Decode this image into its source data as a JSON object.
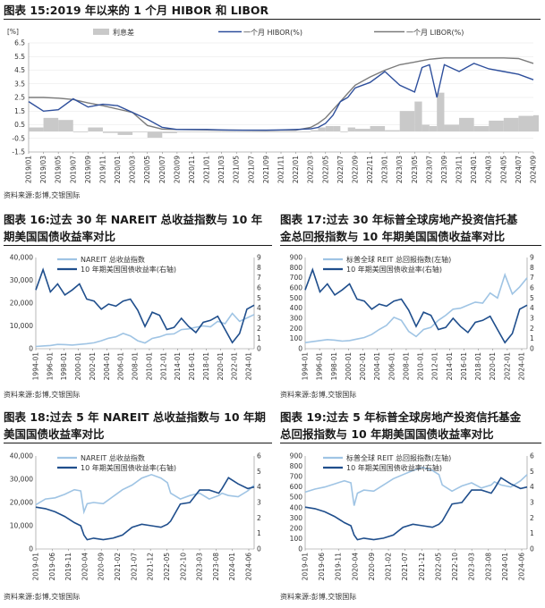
{
  "figures": {
    "f15": {
      "title": "图表 15:2019 年以来的 1 个月 HIBOR 和 LIBOR",
      "source": "资料来源:彭博,交银国际"
    },
    "f16": {
      "title_line1": "图表 16:过去 30 年 NAREIT 总收益指数与 10 年",
      "title_line2": "期美国国债收益率对比",
      "source": "资料来源:彭博,交银国际"
    },
    "f17": {
      "title_line1": "图表 17:过去 30 年标普全球房地产投资信托基",
      "title_line2": "金总回报指数与 10 年期美国国债收益率对比",
      "source": "资料来源:彭博,交银国际"
    },
    "f18": {
      "title_line1": "图表 18:过去 5 年 NAREIT 总收益指数与 10 年期",
      "title_line2": "美国国债收益率对比",
      "source": "资料来源:彭博,交银国际"
    },
    "f19": {
      "title_line1": "图表 19:过去 5 年标普全球房地产投资信托基金",
      "title_line2": "总回报指数与 10 年期美国国债收益率对比",
      "source": "资料来源:彭博,交银国际"
    }
  },
  "colors": {
    "gray_area": "#c9c9c9",
    "hibor": "#2e4f9c",
    "libor": "#7b7b7b",
    "light_blue": "#9fc4e4",
    "dark_blue": "#1f4e8c"
  },
  "chart_data": [
    {
      "id": "c15",
      "type": "line",
      "unit_label": "[%]",
      "legend": [
        "利息差",
        "一个月 HIBOR(%)",
        "一个月 LIBOR(%)"
      ],
      "ylim": [
        -1.5,
        6.5
      ],
      "y_ticks": [
        -1.5,
        -0.5,
        0.5,
        1.5,
        2.5,
        3.5,
        4.5,
        5.5,
        6.5
      ],
      "x_ticks": [
        "2019/01",
        "2019/03",
        "2019/05",
        "2019/07",
        "2019/09",
        "2019/11",
        "2020/01",
        "2020/03",
        "2020/05",
        "2020/07",
        "2020/09",
        "2020/11",
        "2021/01",
        "2021/03",
        "2021/05",
        "2021/07",
        "2021/09",
        "2021/11",
        "2022/01",
        "2022/03",
        "2022/05",
        "2022/07",
        "2022/09",
        "2022/11",
        "2023/01",
        "2023/03",
        "2023/05",
        "2023/07",
        "2023/09",
        "2023/11",
        "2024/01",
        "2024/03",
        "2024/05",
        "2024/07",
        "2024/09"
      ],
      "x": [
        0,
        2,
        4,
        6,
        8,
        10,
        12,
        14,
        16,
        18,
        20,
        22,
        24,
        26,
        28,
        30,
        32,
        34,
        36,
        38,
        39,
        40,
        41,
        42,
        43,
        44,
        46,
        48,
        50,
        52,
        53,
        54,
        55,
        56,
        58,
        60,
        62,
        64,
        66,
        68
      ],
      "series": [
        {
          "name": "一个月 HIBOR(%)",
          "values": [
            2.2,
            1.5,
            1.6,
            2.4,
            1.8,
            2.0,
            1.9,
            1.4,
            0.9,
            0.3,
            0.15,
            0.15,
            0.15,
            0.12,
            0.1,
            0.1,
            0.1,
            0.12,
            0.15,
            0.2,
            0.3,
            0.6,
            1.2,
            2.2,
            2.5,
            3.2,
            3.6,
            4.4,
            3.4,
            2.9,
            4.7,
            4.9,
            2.5,
            4.9,
            4.4,
            5.0,
            4.6,
            4.4,
            4.2,
            3.8
          ]
        },
        {
          "name": "一个月 LIBOR(%)",
          "values": [
            2.5,
            2.5,
            2.45,
            2.35,
            2.1,
            1.9,
            1.65,
            1.4,
            0.45,
            0.18,
            0.15,
            0.14,
            0.12,
            0.1,
            0.1,
            0.09,
            0.08,
            0.1,
            0.1,
            0.3,
            0.6,
            1.0,
            1.6,
            2.2,
            2.8,
            3.4,
            4.0,
            4.5,
            4.9,
            5.1,
            5.2,
            5.3,
            5.35,
            5.4,
            5.4,
            5.4,
            5.4,
            5.4,
            5.35,
            5.0
          ]
        },
        {
          "name": "利息差",
          "values": [
            0.3,
            1.0,
            0.85,
            -0.05,
            0.3,
            -0.1,
            -0.25,
            0.0,
            -0.45,
            -0.12,
            0.0,
            -0.01,
            -0.03,
            -0.02,
            0.0,
            -0.01,
            -0.02,
            -0.02,
            -0.05,
            0.1,
            0.3,
            0.4,
            0.4,
            0.0,
            0.3,
            0.2,
            0.4,
            0.1,
            1.5,
            2.2,
            0.5,
            0.4,
            2.85,
            0.5,
            1.0,
            0.4,
            0.8,
            1.0,
            1.15,
            1.2
          ]
        }
      ]
    },
    {
      "id": "c16",
      "type": "line",
      "legend": [
        "NAREIT 总收益指数",
        "10 年期美国国债收益率(右轴)"
      ],
      "y_left": [
        0,
        40000
      ],
      "y_left_ticks": [
        "0",
        "10,000",
        "20,000",
        "30,000",
        "40,000"
      ],
      "y_right": [
        0,
        9
      ],
      "y_right_ticks": [
        "0",
        "1",
        "2",
        "3",
        "4",
        "5",
        "6",
        "7",
        "8",
        "9"
      ],
      "x_ticks": [
        "1994-01",
        "1996-01",
        "1998-01",
        "2000-01",
        "2002-01",
        "2004-01",
        "2006-01",
        "2008-01",
        "2010-01",
        "2012-01",
        "2014-01",
        "2016-01",
        "2018-01",
        "2020-01",
        "2022-01",
        "2024-01"
      ],
      "x": [
        1994,
        1995,
        1996,
        1997,
        1998,
        1999,
        2000,
        2001,
        2002,
        2003,
        2004,
        2005,
        2006,
        2007,
        2008,
        2009,
        2010,
        2011,
        2012,
        2013,
        2014,
        2015,
        2016,
        2017,
        2018,
        2019,
        2020,
        2021,
        2022,
        2023,
        2024
      ],
      "series": [
        {
          "name": "NAREIT 总收益指数",
          "axis": "left",
          "values": [
            1000,
            1200,
            1400,
            1900,
            1800,
            1600,
            1900,
            2200,
            2600,
            3500,
            4600,
            5200,
            6700,
            5600,
            3500,
            2500,
            4500,
            5200,
            6300,
            6500,
            8400,
            8700,
            9400,
            10000,
            9600,
            12000,
            11000,
            15500,
            12000,
            13500,
            15000
          ]
        },
        {
          "name": "10 年期美国国债收益率(右轴)",
          "axis": "right",
          "values": [
            5.8,
            7.8,
            5.6,
            6.4,
            5.3,
            5.8,
            6.4,
            4.9,
            4.7,
            3.9,
            4.4,
            4.2,
            4.7,
            4.9,
            3.8,
            2.2,
            3.6,
            3.3,
            1.9,
            2.1,
            3.0,
            2.2,
            1.6,
            2.6,
            2.8,
            3.2,
            1.9,
            0.6,
            1.5,
            3.9,
            4.3
          ]
        }
      ]
    },
    {
      "id": "c17",
      "type": "line",
      "legend": [
        "标普全球 REIT 总回报指数(左轴)",
        "10 年期美国国债收益率(右轴)"
      ],
      "y_left": [
        0,
        900
      ],
      "y_left_ticks": [
        "0",
        "100",
        "200",
        "300",
        "400",
        "500",
        "600",
        "700",
        "800",
        "900"
      ],
      "y_right": [
        0,
        9
      ],
      "y_right_ticks": [
        "0",
        "1",
        "2",
        "3",
        "4",
        "5",
        "6",
        "7",
        "8",
        "9"
      ],
      "x_ticks": [
        "1994-01",
        "1996-01",
        "1998-01",
        "2000-01",
        "2002-01",
        "2004-01",
        "2006-01",
        "2008-01",
        "2010-01",
        "2012-01",
        "2014-01",
        "2016-01",
        "2018-01",
        "2020-01",
        "2022-01",
        "2024-01"
      ],
      "x": [
        1994,
        1995,
        1996,
        1997,
        1998,
        1999,
        2000,
        2001,
        2002,
        2003,
        2004,
        2005,
        2006,
        2007,
        2008,
        2009,
        2010,
        2011,
        2012,
        2013,
        2014,
        2015,
        2016,
        2017,
        2018,
        2019,
        2020,
        2021,
        2022,
        2023,
        2024
      ],
      "series": [
        {
          "name": "标普全球 REIT 总回报指数(左轴)",
          "axis": "left",
          "values": [
            60,
            70,
            80,
            90,
            85,
            75,
            80,
            95,
            110,
            140,
            190,
            230,
            310,
            280,
            170,
            120,
            190,
            210,
            280,
            330,
            390,
            400,
            430,
            460,
            450,
            550,
            500,
            730,
            540,
            610,
            700
          ]
        },
        {
          "name": "10 年期美国国债收益率(右轴)",
          "axis": "right",
          "values": [
            5.8,
            7.8,
            5.6,
            6.4,
            5.3,
            5.8,
            6.4,
            4.9,
            4.7,
            3.9,
            4.4,
            4.2,
            4.7,
            4.9,
            3.8,
            2.2,
            3.6,
            3.3,
            1.9,
            2.1,
            3.0,
            2.2,
            1.6,
            2.6,
            2.8,
            3.2,
            1.9,
            0.6,
            1.5,
            3.9,
            4.3
          ]
        }
      ]
    },
    {
      "id": "c18",
      "type": "line",
      "legend": [
        "NAREIT 总收益指数",
        "10 年期美国国债收益率(右轴)"
      ],
      "y_left": [
        0,
        40000
      ],
      "y_left_ticks": [
        "0",
        "10,000",
        "20,000",
        "30,000",
        "40,000"
      ],
      "y_right": [
        0,
        6
      ],
      "y_right_ticks": [
        "0",
        "1",
        "2",
        "3",
        "4",
        "5",
        "6"
      ],
      "x_ticks": [
        "2019-01",
        "2019-06",
        "2019-11",
        "2020-04",
        "2020-09",
        "2021-02",
        "2021-07",
        "2021-12",
        "2022-05",
        "2022-10",
        "2023-03",
        "2023-08",
        "2024-01",
        "2024-06"
      ],
      "x": [
        0,
        3,
        6,
        9,
        12,
        14,
        15,
        16,
        18,
        21,
        24,
        27,
        30,
        33,
        36,
        39,
        41,
        42,
        45,
        48,
        51,
        54,
        57,
        58,
        60,
        63,
        66,
        68
      ],
      "series": [
        {
          "name": "NAREIT 总收益指数",
          "axis": "left",
          "values": [
            19000,
            21500,
            22000,
            23500,
            25500,
            25000,
            16000,
            19500,
            20000,
            19500,
            22500,
            25500,
            27500,
            30500,
            32000,
            30500,
            28500,
            24000,
            21500,
            23000,
            24000,
            21500,
            23000,
            24000,
            23000,
            22500,
            25000,
            27500
          ]
        },
        {
          "name": "10 年期美国国债收益率(右轴)",
          "axis": "right",
          "values": [
            2.7,
            2.6,
            2.4,
            2.1,
            1.7,
            1.5,
            0.9,
            0.6,
            0.7,
            0.6,
            0.7,
            0.9,
            1.4,
            1.6,
            1.5,
            1.4,
            1.6,
            1.8,
            2.9,
            3.0,
            3.8,
            3.8,
            3.6,
            3.9,
            4.6,
            4.2,
            3.9,
            4.0
          ]
        }
      ]
    },
    {
      "id": "c19",
      "type": "line",
      "legend": [
        "标普全球 REIT 总回报指数(左轴)",
        "10 年期美国国债收益率(右轴)"
      ],
      "y_left": [
        0,
        900
      ],
      "y_left_ticks": [
        "0",
        "100",
        "200",
        "300",
        "400",
        "500",
        "600",
        "700",
        "800",
        "900"
      ],
      "y_right": [
        0,
        6
      ],
      "y_right_ticks": [
        "0",
        "1",
        "2",
        "3",
        "4",
        "5",
        "6"
      ],
      "x_ticks": [
        "2019-01",
        "2019-06",
        "2019-11",
        "2020-04",
        "2020-09",
        "2021-02",
        "2021-07",
        "2021-12",
        "2022-05",
        "2022-10",
        "2023-03",
        "2023-08",
        "2024-01",
        "2024-06"
      ],
      "x": [
        0,
        3,
        6,
        9,
        12,
        14,
        15,
        16,
        18,
        21,
        24,
        27,
        30,
        33,
        36,
        39,
        41,
        42,
        45,
        48,
        51,
        54,
        57,
        58,
        60,
        63,
        66,
        68
      ],
      "series": [
        {
          "name": "标普全球 REIT 总回报指数(左轴)",
          "axis": "left",
          "values": [
            550,
            580,
            600,
            630,
            660,
            640,
            420,
            540,
            570,
            560,
            620,
            680,
            720,
            760,
            790,
            760,
            720,
            620,
            560,
            610,
            640,
            590,
            620,
            650,
            620,
            600,
            660,
            720
          ]
        },
        {
          "name": "10 年期美国国债收益率(右轴)",
          "axis": "right",
          "values": [
            2.7,
            2.6,
            2.4,
            2.1,
            1.7,
            1.5,
            0.9,
            0.6,
            0.7,
            0.6,
            0.7,
            0.9,
            1.4,
            1.6,
            1.5,
            1.4,
            1.6,
            1.8,
            2.9,
            3.0,
            3.8,
            3.8,
            3.6,
            3.9,
            4.6,
            4.2,
            3.9,
            4.0
          ]
        }
      ]
    }
  ]
}
